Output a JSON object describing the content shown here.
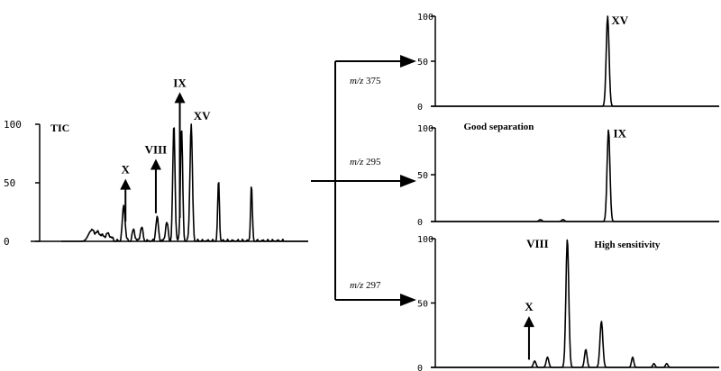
{
  "chart_data": [
    {
      "type": "line",
      "trace_label": "TIC",
      "ylim": [
        0,
        100
      ],
      "yticks": [
        "100",
        "50",
        "0"
      ],
      "x_domain": [
        0,
        100
      ],
      "peaks": [
        {
          "x": 12,
          "y": 8,
          "w": 1.2
        },
        {
          "x": 15,
          "y": 7,
          "w": 1.5
        },
        {
          "x": 19,
          "y": 6,
          "w": 1.2
        },
        {
          "x": 25.3,
          "y": 30,
          "w": 0.55
        },
        {
          "x": 29.3,
          "y": 10,
          "w": 0.55
        },
        {
          "x": 32.5,
          "y": 12,
          "w": 0.55
        },
        {
          "x": 38.8,
          "y": 20,
          "w": 0.55
        },
        {
          "x": 42.7,
          "y": 16,
          "w": 0.55
        },
        {
          "x": 45.6,
          "y": 100,
          "w": 0.45
        },
        {
          "x": 48.7,
          "y": 97,
          "w": 0.45
        },
        {
          "x": 52.6,
          "y": 100,
          "w": 0.5
        },
        {
          "x": 63.7,
          "y": 52,
          "w": 0.35
        },
        {
          "x": 77,
          "y": 48,
          "w": 0.35
        }
      ],
      "annotations": [
        {
          "label": "X",
          "x": 26,
          "y": 58,
          "arrow_from_y": 17
        },
        {
          "label": "VIII",
          "x": 38.3,
          "y": 75,
          "arrow_from_y": 24
        },
        {
          "label": "IX",
          "x": 48,
          "y": 132,
          "arrow_from_y": 20
        },
        {
          "label": "XV",
          "x": 57,
          "y": 104
        }
      ]
    },
    {
      "type": "line",
      "ion_label": "m/z 375",
      "ylim": [
        0,
        100
      ],
      "yticks": [
        "100",
        "50",
        "0"
      ],
      "x_domain": [
        0,
        100
      ],
      "peaks": [
        {
          "x": 60.7,
          "y": 100,
          "w": 0.5
        }
      ],
      "annotations": [
        {
          "label": "XV",
          "x": 65,
          "y": 91
        }
      ]
    },
    {
      "type": "line",
      "ion_label": "m/z 295",
      "ylim": [
        0,
        100
      ],
      "yticks": [
        "100",
        "50",
        "0"
      ],
      "x_domain": [
        0,
        100
      ],
      "peaks": [
        {
          "x": 37,
          "y": 2,
          "w": 0.5
        },
        {
          "x": 45,
          "y": 2,
          "w": 0.5
        },
        {
          "x": 61,
          "y": 98,
          "w": 0.5
        }
      ],
      "annotations": [
        {
          "label": "IX",
          "x": 65,
          "y": 90
        },
        {
          "label": "Good separation",
          "x": 10,
          "y": 98
        }
      ]
    },
    {
      "type": "line",
      "ion_label": "m/z 297",
      "ylim": [
        0,
        100
      ],
      "yticks": [
        "100",
        "50",
        "0"
      ],
      "x_domain": [
        0,
        100
      ],
      "peaks": [
        {
          "x": 35,
          "y": 5,
          "w": 0.45
        },
        {
          "x": 39.5,
          "y": 8,
          "w": 0.45
        },
        {
          "x": 46.5,
          "y": 100,
          "w": 0.5
        },
        {
          "x": 53,
          "y": 14,
          "w": 0.45
        },
        {
          "x": 58.5,
          "y": 36,
          "w": 0.5
        },
        {
          "x": 69.5,
          "y": 8,
          "w": 0.4
        },
        {
          "x": 77,
          "y": 3,
          "w": 0.4
        },
        {
          "x": 81.5,
          "y": 3,
          "w": 0.4
        }
      ],
      "annotations": [
        {
          "label": "VIII",
          "x": 36,
          "y": 93
        },
        {
          "label": "High sensitivity",
          "x": 56,
          "y": 93
        },
        {
          "label": "X",
          "x": 33,
          "y": 44,
          "arrow_from_y": 6
        }
      ]
    }
  ]
}
